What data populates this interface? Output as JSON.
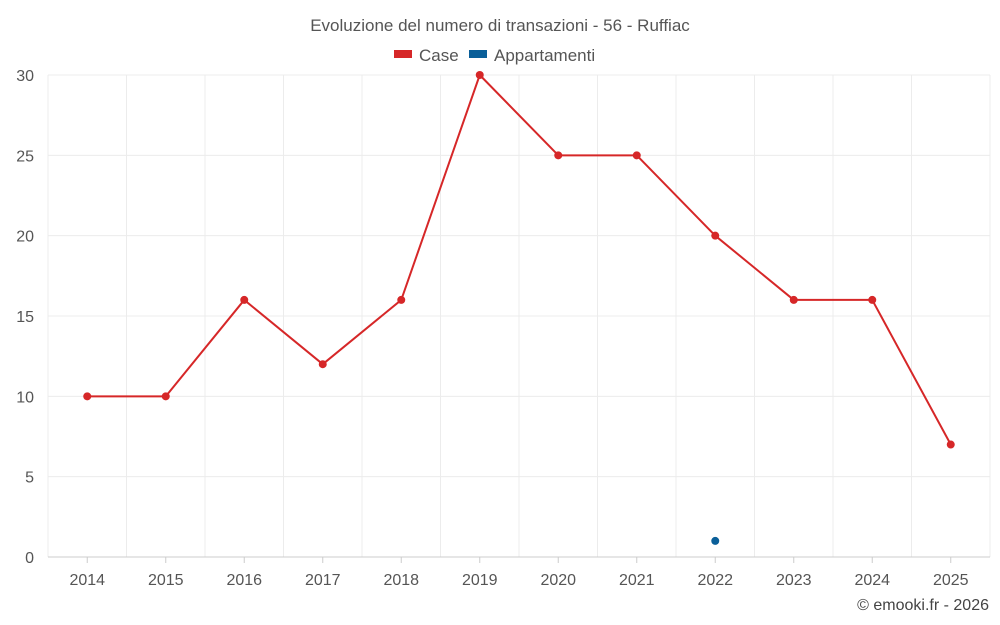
{
  "chart_data": {
    "type": "line",
    "title": "Evoluzione del numero di transazioni - 56 - Ruffiac",
    "categories": [
      "2014",
      "2015",
      "2016",
      "2017",
      "2018",
      "2019",
      "2020",
      "2021",
      "2022",
      "2023",
      "2024",
      "2025"
    ],
    "series": [
      {
        "name": "Case",
        "color": "#d62728",
        "values": [
          10,
          10,
          16,
          12,
          16,
          30,
          25,
          25,
          20,
          16,
          16,
          7
        ]
      },
      {
        "name": "Appartamenti",
        "color": "#0a5f99",
        "values": [
          null,
          null,
          null,
          null,
          null,
          null,
          null,
          null,
          1,
          null,
          null,
          null
        ]
      }
    ],
    "ylim": [
      0,
      30
    ],
    "yticks": [
      0,
      5,
      10,
      15,
      20,
      25,
      30
    ],
    "legend_position": "top-center",
    "grid": true
  },
  "credit": "© emooki.fr - 2026"
}
